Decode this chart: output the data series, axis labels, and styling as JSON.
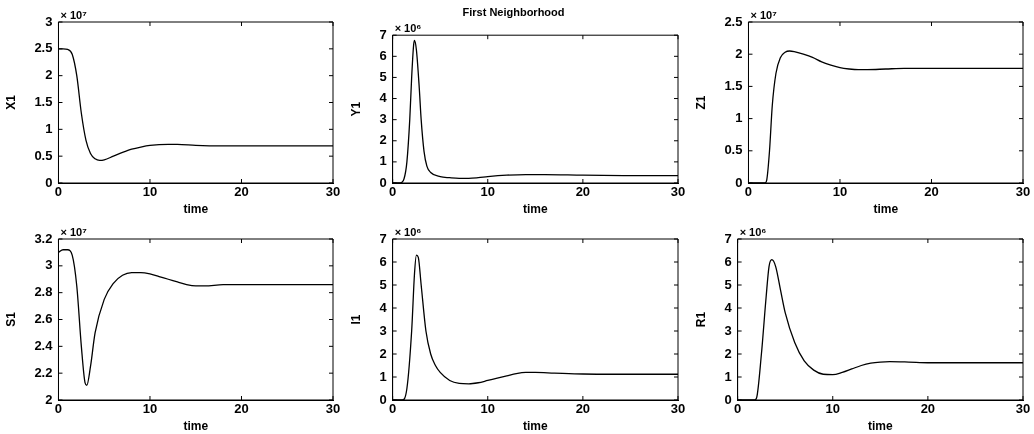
{
  "chart_data": [
    {
      "type": "line",
      "xlabel": "time",
      "ylabel": "X1",
      "annotations": [
        "× 10⁷"
      ],
      "xlim": [
        0,
        30
      ],
      "xticks": [
        0,
        10,
        20,
        30
      ],
      "ylim": [
        0,
        3
      ],
      "yticks": [
        0,
        0.5,
        1,
        1.5,
        2,
        2.5,
        3
      ],
      "grid": false,
      "legend": false,
      "line_style": "solid",
      "marker": "none",
      "series": [
        {
          "color": "#000000",
          "x": [
            0,
            0.5,
            1,
            1.5,
            2,
            2.5,
            3,
            3.5,
            4,
            4.5,
            5,
            6,
            7,
            8,
            9,
            10,
            12,
            13,
            15,
            18,
            20,
            25,
            30
          ],
          "values": [
            2.5,
            2.5,
            2.49,
            2.4,
            2.0,
            1.3,
            0.8,
            0.55,
            0.45,
            0.42,
            0.43,
            0.5,
            0.57,
            0.63,
            0.67,
            0.7,
            0.72,
            0.72,
            0.7,
            0.69,
            0.69,
            0.69,
            0.69
          ]
        }
      ]
    },
    {
      "type": "line",
      "title": "First Neighborhood",
      "xlabel": "time",
      "ylabel": "Y1",
      "annotations": [
        "× 10⁶"
      ],
      "xlim": [
        0,
        30
      ],
      "xticks": [
        0,
        10,
        20,
        30
      ],
      "ylim": [
        0,
        7
      ],
      "yticks": [
        0,
        1,
        2,
        3,
        4,
        5,
        6,
        7
      ],
      "grid": false,
      "legend": false,
      "line_style": "solid",
      "marker": "none",
      "series": [
        {
          "color": "#000000",
          "x": [
            0,
            0.8,
            1.2,
            1.5,
            1.8,
            2,
            2.2,
            2.3,
            2.5,
            2.8,
            3,
            3.3,
            3.6,
            4,
            5,
            6,
            7,
            8,
            9,
            10,
            12,
            14,
            16,
            20,
            25,
            30
          ],
          "values": [
            0,
            0,
            0.2,
            1,
            3,
            5,
            6.5,
            6.75,
            6.3,
            4.5,
            3,
            1.5,
            0.8,
            0.5,
            0.3,
            0.25,
            0.22,
            0.22,
            0.25,
            0.3,
            0.37,
            0.4,
            0.4,
            0.37,
            0.35,
            0.35
          ]
        }
      ]
    },
    {
      "type": "line",
      "xlabel": "time",
      "ylabel": "Z1",
      "annotations": [
        "× 10⁷"
      ],
      "xlim": [
        0,
        30
      ],
      "xticks": [
        0,
        10,
        20,
        30
      ],
      "ylim": [
        0,
        2.5
      ],
      "yticks": [
        0,
        0.5,
        1,
        1.5,
        2,
        2.5
      ],
      "grid": false,
      "legend": false,
      "line_style": "solid",
      "marker": "none",
      "series": [
        {
          "color": "#000000",
          "x": [
            0,
            1.8,
            2,
            2.3,
            2.6,
            3,
            3.5,
            4,
            4.5,
            5,
            6,
            7,
            8,
            9,
            10,
            11,
            12,
            13,
            15,
            17,
            20,
            30
          ],
          "values": [
            0,
            0,
            0.05,
            0.5,
            1.2,
            1.7,
            1.95,
            2.03,
            2.05,
            2.04,
            2.0,
            1.95,
            1.88,
            1.83,
            1.79,
            1.77,
            1.76,
            1.76,
            1.77,
            1.78,
            1.78,
            1.78
          ]
        }
      ]
    },
    {
      "type": "line",
      "xlabel": "time",
      "ylabel": "S1",
      "annotations": [
        "× 10⁷"
      ],
      "xlim": [
        0,
        30
      ],
      "xticks": [
        0,
        10,
        20,
        30
      ],
      "ylim": [
        2,
        3.2
      ],
      "yticks": [
        2,
        2.2,
        2.4,
        2.6,
        2.8,
        3,
        3.2
      ],
      "grid": false,
      "legend": false,
      "line_style": "solid",
      "marker": "none",
      "series": [
        {
          "color": "#000000",
          "x": [
            0,
            0.5,
            1,
            1.5,
            2,
            2.5,
            2.9,
            3.1,
            3.5,
            4,
            5,
            6,
            7,
            8,
            9,
            10,
            11,
            12,
            13,
            14,
            15,
            16,
            18,
            20,
            25,
            30
          ],
          "values": [
            3.1,
            3.12,
            3.12,
            3.08,
            2.85,
            2.4,
            2.13,
            2.11,
            2.25,
            2.5,
            2.75,
            2.87,
            2.93,
            2.95,
            2.95,
            2.94,
            2.92,
            2.9,
            2.88,
            2.86,
            2.85,
            2.85,
            2.86,
            2.86,
            2.86,
            2.86
          ]
        }
      ]
    },
    {
      "type": "line",
      "xlabel": "time",
      "ylabel": "I1",
      "annotations": [
        "× 10⁶"
      ],
      "xlim": [
        0,
        30
      ],
      "xticks": [
        0,
        10,
        20,
        30
      ],
      "ylim": [
        0,
        7
      ],
      "yticks": [
        0,
        1,
        2,
        3,
        4,
        5,
        6,
        7
      ],
      "grid": false,
      "legend": false,
      "line_style": "solid",
      "marker": "none",
      "series": [
        {
          "color": "#000000",
          "x": [
            0,
            1,
            1.5,
            2,
            2.3,
            2.5,
            2.7,
            3,
            3.5,
            4,
            4.5,
            5,
            6,
            7,
            8,
            9,
            10,
            11,
            12,
            13,
            14,
            15,
            17,
            20,
            25,
            30
          ],
          "values": [
            0,
            0,
            0.5,
            3,
            5.5,
            6.3,
            6.2,
            5,
            3,
            2,
            1.5,
            1.2,
            0.85,
            0.72,
            0.7,
            0.75,
            0.85,
            0.95,
            1.05,
            1.15,
            1.2,
            1.2,
            1.17,
            1.13,
            1.12,
            1.12
          ]
        }
      ]
    },
    {
      "type": "line",
      "xlabel": "time",
      "ylabel": "R1",
      "annotations": [
        "× 10⁶"
      ],
      "xlim": [
        0,
        30
      ],
      "xticks": [
        0,
        10,
        20,
        30
      ],
      "ylim": [
        0,
        7
      ],
      "yticks": [
        0,
        1,
        2,
        3,
        4,
        5,
        6,
        7
      ],
      "grid": false,
      "legend": false,
      "line_style": "solid",
      "marker": "none",
      "series": [
        {
          "color": "#000000",
          "x": [
            0,
            1.8,
            2,
            2.5,
            3,
            3.3,
            3.6,
            4,
            4.5,
            5,
            6,
            7,
            8,
            9,
            10,
            11,
            12,
            13,
            14,
            15,
            16,
            18,
            20,
            25,
            30
          ],
          "values": [
            0,
            0,
            0.1,
            2,
            4.5,
            5.8,
            6.1,
            5.8,
            4.8,
            3.8,
            2.5,
            1.7,
            1.3,
            1.12,
            1.1,
            1.2,
            1.35,
            1.5,
            1.6,
            1.65,
            1.67,
            1.65,
            1.62,
            1.62,
            1.62
          ]
        }
      ]
    }
  ]
}
